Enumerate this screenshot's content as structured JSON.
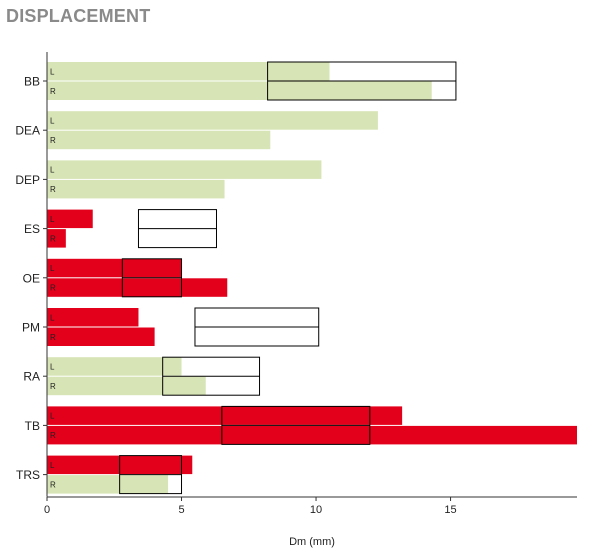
{
  "chart_data": {
    "type": "bar",
    "orientation": "horizontal",
    "title": "DISPLACEMENT",
    "xlabel": "Dm (mm)",
    "ylabel": "",
    "xlim": [
      0,
      19.7
    ],
    "xticks": [
      0,
      5,
      10,
      15
    ],
    "grid": false,
    "colors": {
      "light": "#d7e4b5",
      "red": "#e3001b",
      "box": "#000000"
    },
    "categories": [
      {
        "name": "BB",
        "L": {
          "value": 10.5,
          "color": "light"
        },
        "R": {
          "value": 14.3,
          "color": "light"
        },
        "range": [
          8.2,
          15.2
        ]
      },
      {
        "name": "DEA",
        "L": {
          "value": 12.3,
          "color": "light"
        },
        "R": {
          "value": 8.3,
          "color": "light"
        },
        "range": null
      },
      {
        "name": "DEP",
        "L": {
          "value": 10.2,
          "color": "light"
        },
        "R": {
          "value": 6.6,
          "color": "light"
        },
        "range": null
      },
      {
        "name": "ES",
        "L": {
          "value": 1.7,
          "color": "red"
        },
        "R": {
          "value": 0.7,
          "color": "red"
        },
        "range": [
          3.4,
          6.3
        ]
      },
      {
        "name": "OE",
        "L": {
          "value": 5.0,
          "color": "red"
        },
        "R": {
          "value": 6.7,
          "color": "red"
        },
        "range": [
          2.8,
          5.0
        ]
      },
      {
        "name": "PM",
        "L": {
          "value": 3.4,
          "color": "red"
        },
        "R": {
          "value": 4.0,
          "color": "red"
        },
        "range": [
          5.5,
          10.1
        ]
      },
      {
        "name": "RA",
        "L": {
          "value": 5.0,
          "color": "light"
        },
        "R": {
          "value": 5.9,
          "color": "light"
        },
        "range": [
          4.3,
          7.9
        ]
      },
      {
        "name": "TB",
        "L": {
          "value": 13.2,
          "color": "red"
        },
        "R": {
          "value": 19.7,
          "color": "red"
        },
        "range": [
          6.5,
          12.0
        ]
      },
      {
        "name": "TRS",
        "L": {
          "value": 5.4,
          "color": "red"
        },
        "R": {
          "value": 4.5,
          "color": "light"
        },
        "range": [
          2.7,
          5.0
        ]
      }
    ],
    "side_labels": [
      "L",
      "R"
    ]
  }
}
